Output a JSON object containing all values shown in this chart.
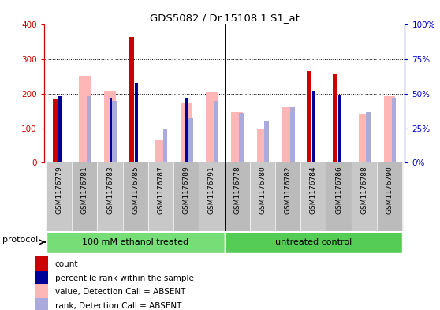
{
  "title": "GDS5082 / Dr.15108.1.S1_at",
  "samples": [
    "GSM1176779",
    "GSM1176781",
    "GSM1176783",
    "GSM1176785",
    "GSM1176787",
    "GSM1176789",
    "GSM1176791",
    "GSM1176778",
    "GSM1176780",
    "GSM1176782",
    "GSM1176784",
    "GSM1176786",
    "GSM1176788",
    "GSM1176790"
  ],
  "count_values": [
    185,
    0,
    0,
    365,
    0,
    0,
    0,
    0,
    0,
    0,
    265,
    257,
    0,
    0
  ],
  "percentile_values": [
    48,
    0,
    47,
    58,
    0,
    47,
    0,
    0,
    0,
    0,
    52,
    49,
    0,
    0
  ],
  "absent_value_values": [
    0,
    253,
    210,
    0,
    65,
    175,
    205,
    147,
    97,
    160,
    0,
    0,
    140,
    193
  ],
  "absent_rank_values": [
    0,
    48,
    45,
    0,
    24,
    33,
    45,
    36,
    30,
    40,
    0,
    0,
    37,
    47
  ],
  "groups": [
    {
      "label": "100 mM ethanol treated",
      "start": 0,
      "end": 7,
      "color": "#77DD77"
    },
    {
      "label": "untreated control",
      "start": 7,
      "end": 14,
      "color": "#55CC55"
    }
  ],
  "count_color": "#CC0000",
  "percentile_color": "#000099",
  "absent_value_color": "#FFB6B6",
  "absent_rank_color": "#AAAADD",
  "ylim_left": [
    0,
    400
  ],
  "ylim_right": [
    0,
    100
  ],
  "yticks_left": [
    0,
    100,
    200,
    300,
    400
  ],
  "yticks_right": [
    0,
    25,
    50,
    75,
    100
  ],
  "ytick_labels_right": [
    "0%",
    "25%",
    "50%",
    "75%",
    "100%"
  ],
  "background_color": "#FFFFFF",
  "legend_items": [
    {
      "label": "count",
      "color": "#CC0000"
    },
    {
      "label": "percentile rank within the sample",
      "color": "#000099"
    },
    {
      "label": "value, Detection Call = ABSENT",
      "color": "#FFB6B6"
    },
    {
      "label": "rank, Detection Call = ABSENT",
      "color": "#AAAADD"
    }
  ],
  "protocol_label": "protocol"
}
